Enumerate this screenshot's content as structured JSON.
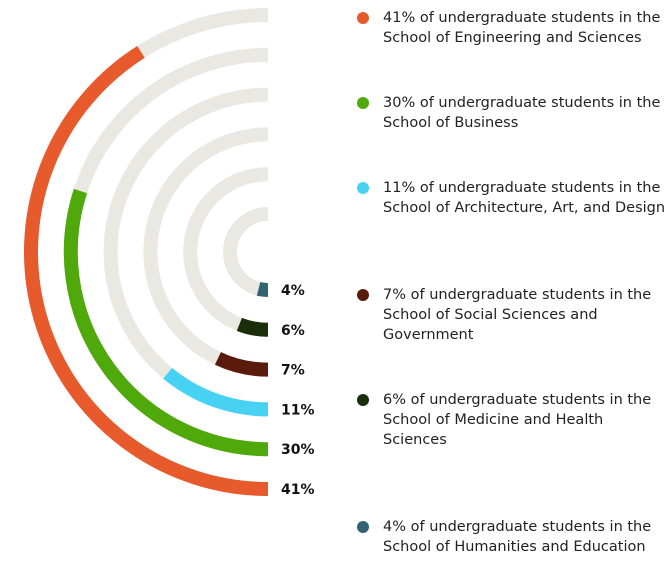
{
  "chart_data": {
    "type": "radial-bar",
    "categories": [
      "41% of undergraduate students in the School of Engineering and Sciences",
      "30% of undergraduate students in the School of Business",
      "11% of undergraduate students in the School of Architecture, Art, and Design",
      "7% of undergraduate students in the School of Social Sciences and Government",
      "6% of undergraduate students in the School of Medicine and Health Sciences",
      "4% of undergraduate students in the School of Humanities and Education"
    ],
    "values": [
      41,
      30,
      11,
      7,
      6,
      4
    ],
    "value_labels": [
      "41%",
      "30%",
      "11%",
      "7%",
      "6%",
      "4%"
    ],
    "colors": [
      "#e65a2b",
      "#4fa90b",
      "#47d2f4",
      "#5a1b0c",
      "#1b2e0a",
      "#316371"
    ],
    "track_color": "#e9e8e3",
    "rlim": [
      0,
      50
    ]
  }
}
